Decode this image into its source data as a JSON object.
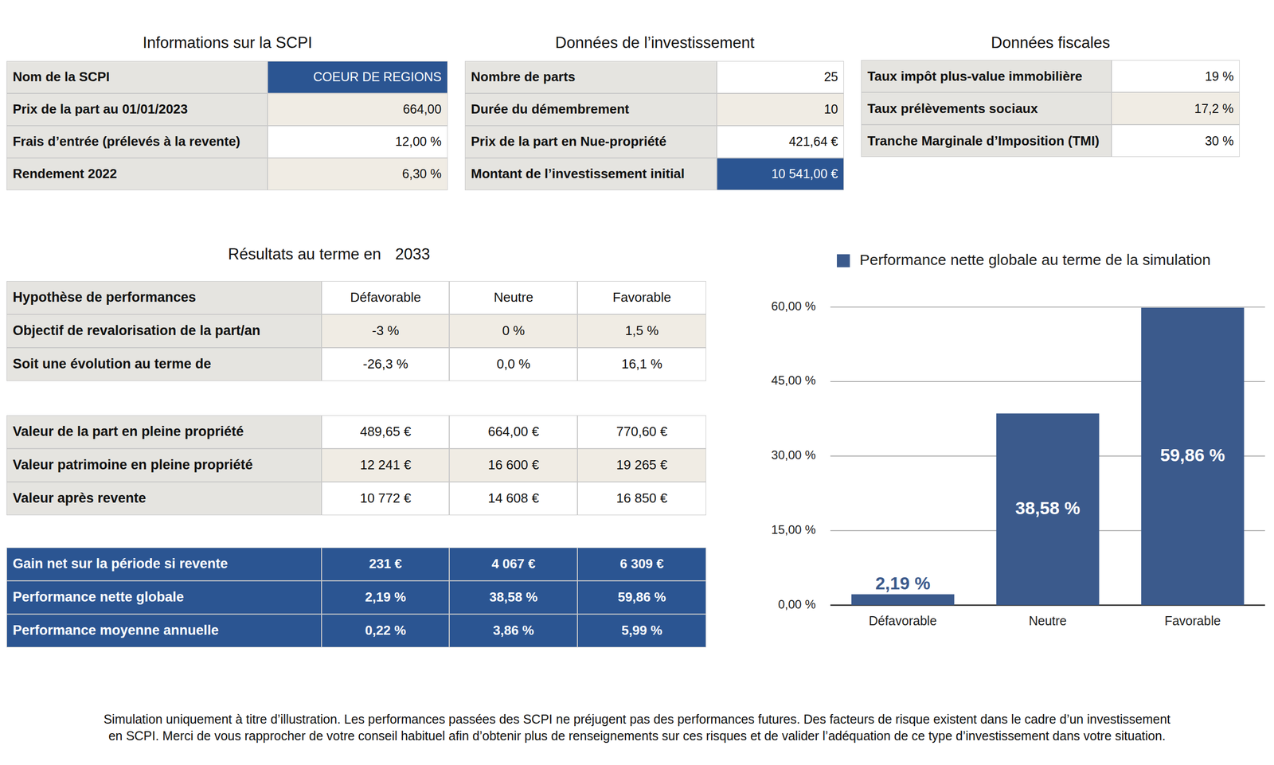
{
  "info_tables": [
    {
      "title": "Informations sur la SCPI",
      "rows": [
        [
          "Nom de la SCPI",
          "COEUR DE REGIONS"
        ],
        [
          "Prix de la part au 01/01/2023",
          "664,00"
        ],
        [
          "Frais d’entrée (prélevés à la revente)",
          "12,00 %"
        ],
        [
          "Rendement 2022",
          "6,30 %"
        ]
      ]
    },
    {
      "title": "Données de l’investissement",
      "rows": [
        [
          "Nombre de parts",
          "25"
        ],
        [
          "Durée du démembrement",
          "10"
        ],
        [
          "Prix de la part en Nue-propriété",
          "421,64 €"
        ],
        [
          "Montant de l’investissement initial",
          "10 541,00 €"
        ]
      ]
    },
    {
      "title": "Données fiscales",
      "rows": [
        [
          "Taux impôt plus-value immobilière",
          "19 %"
        ],
        [
          "Taux prélèvements sociaux",
          "17,2 %"
        ],
        [
          "Tranche Marginale d’Imposition (TMI)",
          "30 %"
        ]
      ]
    }
  ],
  "results": {
    "title": "Résultats au terme en",
    "year": "2033",
    "sections": [
      [
        [
          "Hypothèse de performances",
          "Défavorable",
          "Neutre",
          "Favorable"
        ],
        [
          "Objectif de revalorisation de la part/an",
          "-3 %",
          "0 %",
          "1,5 %"
        ],
        [
          "Soit une évolution au terme de",
          "-26,3 %",
          "0,0 %",
          "16,1 %"
        ]
      ],
      [
        [
          "Valeur de la part en pleine propriété",
          "489,65 €",
          "664,00 €",
          "770,60 €"
        ],
        [
          "Valeur patrimoine en pleine propriété",
          "12 241 €",
          "16 600 €",
          "19 265 €"
        ],
        [
          "Valeur après revente",
          "10 772 €",
          "14 608 €",
          "16 850 €"
        ]
      ],
      [
        [
          "Gain net sur la période si revente",
          "231 €",
          "4 067 €",
          "6 309 €"
        ],
        [
          "Performance nette globale",
          "2,19 %",
          "38,58 %",
          "59,86 %"
        ],
        [
          "Performance moyenne annuelle",
          "0,22 %",
          "3,86 %",
          "5,99 %"
        ]
      ]
    ]
  },
  "chart_data": {
    "type": "bar",
    "categories": [
      "Défavorable",
      "Neutre",
      "Favorable"
    ],
    "series": [
      {
        "name": "Performance nette globale au terme de la simulation",
        "color": "#3b5a8c",
        "values": [
          2.19,
          38.58,
          59.86
        ],
        "value_labels": [
          "2,19 %",
          "38,58 %",
          "59,86 %"
        ]
      }
    ],
    "ylim": [
      0,
      60
    ],
    "yticks": [
      {
        "value": 0,
        "label": "0,00 %"
      },
      {
        "value": 15,
        "label": "15,00 %"
      },
      {
        "value": 30,
        "label": "30,00 %"
      },
      {
        "value": 45,
        "label": "45,00 %"
      },
      {
        "value": 60,
        "label": "60,00 %"
      }
    ],
    "grid": true,
    "data_labels": true,
    "legend": "top"
  },
  "disclaimer": [
    "Simulation uniquement à titre d’illustration. Les performances passées des SCPI ne préjugent pas des performances futures. Des facteurs de risque existent dans le cadre d’un investissement",
    "en SCPI. Merci de vous rapprocher de votre conseil habituel afin d’obtenir plus de renseignements sur ces risques et de valider l’adéquation de ce type d’investissement dans votre situation."
  ]
}
